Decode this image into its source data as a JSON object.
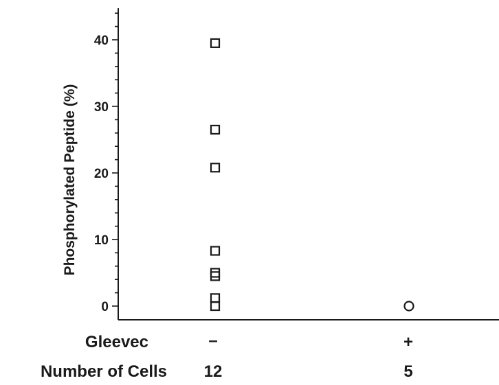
{
  "chart_data": {
    "type": "scatter",
    "ylabel": "Phosphorylated Peptide (%)",
    "ylim": [
      -2,
      45
    ],
    "yticks": [
      0,
      10,
      20,
      30,
      40
    ],
    "grid": false,
    "categories": [
      "–",
      "+"
    ],
    "series": [
      {
        "marker": "square",
        "category": "–",
        "values": [
          39.5,
          26.5,
          20.8,
          8.3,
          5.0,
          4.5,
          1.2,
          0.0
        ]
      },
      {
        "marker": "circle",
        "category": "+",
        "values": [
          0.0
        ]
      }
    ],
    "rows": [
      {
        "label": "Gleevec",
        "values": [
          "–",
          "+"
        ]
      },
      {
        "label": "Number of Cells",
        "values": [
          "12",
          "5"
        ]
      }
    ],
    "colors": {
      "ink": "#1a1a1a"
    }
  }
}
